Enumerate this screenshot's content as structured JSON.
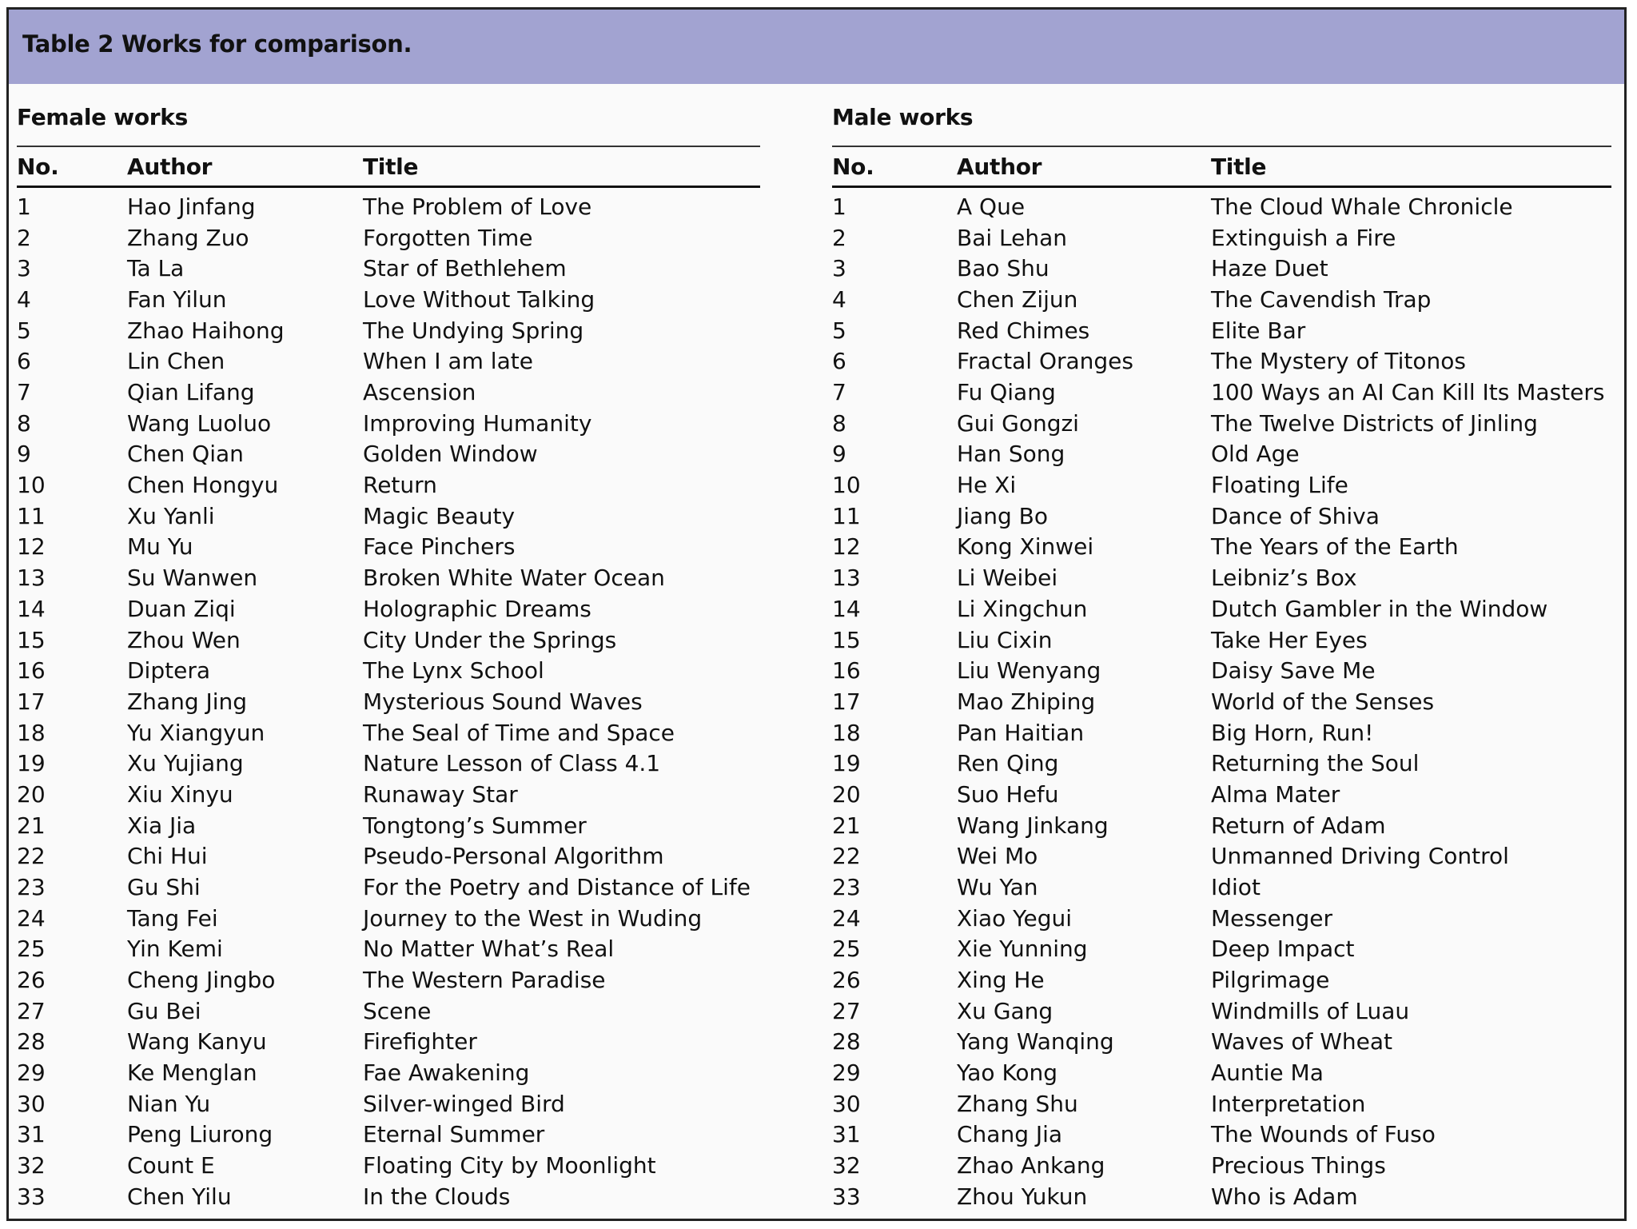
{
  "caption": "Table 2 Works for comparison.",
  "columns": {
    "no": "No.",
    "author": "Author",
    "title": "Title"
  },
  "female": {
    "heading": "Female works",
    "rows": [
      [
        "1",
        "Hao Jinfang",
        "The Problem of Love"
      ],
      [
        "2",
        "Zhang Zuo",
        "Forgotten Time"
      ],
      [
        "3",
        "Ta La",
        "Star of Bethlehem"
      ],
      [
        "4",
        "Fan Yilun",
        "Love Without Talking"
      ],
      [
        "5",
        "Zhao Haihong",
        "The Undying Spring"
      ],
      [
        "6",
        "Lin Chen",
        "When I am late"
      ],
      [
        "7",
        "Qian Lifang",
        "Ascension"
      ],
      [
        "8",
        "Wang Luoluo",
        "Improving Humanity"
      ],
      [
        "9",
        "Chen Qian",
        "Golden Window"
      ],
      [
        "10",
        "Chen Hongyu",
        "Return"
      ],
      [
        "11",
        "Xu Yanli",
        "Magic Beauty"
      ],
      [
        "12",
        "Mu Yu",
        "Face Pinchers"
      ],
      [
        "13",
        "Su Wanwen",
        "Broken White Water Ocean"
      ],
      [
        "14",
        "Duan Ziqi",
        "Holographic Dreams"
      ],
      [
        "15",
        "Zhou Wen",
        "City Under the Springs"
      ],
      [
        "16",
        "Diptera",
        "The Lynx School"
      ],
      [
        "17",
        "Zhang Jing",
        "Mysterious Sound Waves"
      ],
      [
        "18",
        "Yu Xiangyun",
        "The Seal of Time and Space"
      ],
      [
        "19",
        "Xu Yujiang",
        "Nature Lesson of Class 4.1"
      ],
      [
        "20",
        "Xiu Xinyu",
        "Runaway Star"
      ],
      [
        "21",
        "Xia Jia",
        "Tongtong’s Summer"
      ],
      [
        "22",
        "Chi Hui",
        "Pseudo-Personal Algorithm"
      ],
      [
        "23",
        "Gu Shi",
        "For the Poetry and Distance of Life"
      ],
      [
        "24",
        "Tang Fei",
        "Journey to the West in Wuding"
      ],
      [
        "25",
        "Yin Kemi",
        "No Matter What’s Real"
      ],
      [
        "26",
        "Cheng Jingbo",
        "The Western Paradise"
      ],
      [
        "27",
        "Gu Bei",
        "Scene"
      ],
      [
        "28",
        "Wang Kanyu",
        "Firefighter"
      ],
      [
        "29",
        "Ke Menglan",
        "Fae Awakening"
      ],
      [
        "30",
        "Nian Yu",
        "Silver-winged Bird"
      ],
      [
        "31",
        "Peng Liurong",
        "Eternal Summer"
      ],
      [
        "32",
        "Count E",
        "Floating City by Moonlight"
      ],
      [
        "33",
        "Chen Yilu",
        "In the Clouds"
      ]
    ]
  },
  "male": {
    "heading": "Male works",
    "rows": [
      [
        "1",
        "A Que",
        "The Cloud Whale Chronicle"
      ],
      [
        "2",
        "Bai Lehan",
        "Extinguish a Fire"
      ],
      [
        "3",
        "Bao Shu",
        "Haze Duet"
      ],
      [
        "4",
        "Chen Zijun",
        "The Cavendish Trap"
      ],
      [
        "5",
        "Red Chimes",
        "Elite Bar"
      ],
      [
        "6",
        "Fractal Oranges",
        "The Mystery of Titonos"
      ],
      [
        "7",
        "Fu Qiang",
        "100 Ways an AI Can Kill Its Masters"
      ],
      [
        "8",
        "Gui Gongzi",
        "The Twelve Districts of Jinling"
      ],
      [
        "9",
        "Han Song",
        "Old Age"
      ],
      [
        "10",
        "He Xi",
        "Floating Life"
      ],
      [
        "11",
        "Jiang Bo",
        "Dance of Shiva"
      ],
      [
        "12",
        "Kong Xinwei",
        "The Years of the Earth"
      ],
      [
        "13",
        "Li Weibei",
        "Leibniz’s Box"
      ],
      [
        "14",
        "Li Xingchun",
        "Dutch Gambler in the Window"
      ],
      [
        "15",
        "Liu Cixin",
        "Take Her Eyes"
      ],
      [
        "16",
        "Liu Wenyang",
        "Daisy Save Me"
      ],
      [
        "17",
        "Mao Zhiping",
        "World of the Senses"
      ],
      [
        "18",
        "Pan Haitian",
        "Big Horn, Run!"
      ],
      [
        "19",
        "Ren Qing",
        "Returning the Soul"
      ],
      [
        "20",
        "Suo Hefu",
        "Alma Mater"
      ],
      [
        "21",
        "Wang Jinkang",
        "Return of Adam"
      ],
      [
        "22",
        "Wei Mo",
        "Unmanned Driving Control"
      ],
      [
        "23",
        "Wu Yan",
        "Idiot"
      ],
      [
        "24",
        "Xiao Yegui",
        "Messenger"
      ],
      [
        "25",
        "Xie Yunning",
        "Deep Impact"
      ],
      [
        "26",
        "Xing He",
        "Pilgrimage"
      ],
      [
        "27",
        "Xu Gang",
        "Windmills of Luau"
      ],
      [
        "28",
        "Yang Wanqing",
        "Waves of Wheat"
      ],
      [
        "29",
        "Yao Kong",
        "Auntie Ma"
      ],
      [
        "30",
        "Zhang Shu",
        "Interpretation"
      ],
      [
        "31",
        "Chang Jia",
        "The Wounds of Fuso"
      ],
      [
        "32",
        "Zhao Ankang",
        "Precious Things"
      ],
      [
        "33",
        "Zhou Yukun",
        "Who is Adam"
      ]
    ]
  },
  "colors": {
    "header_band": "#a2a3d1",
    "background": "#fafafa"
  }
}
